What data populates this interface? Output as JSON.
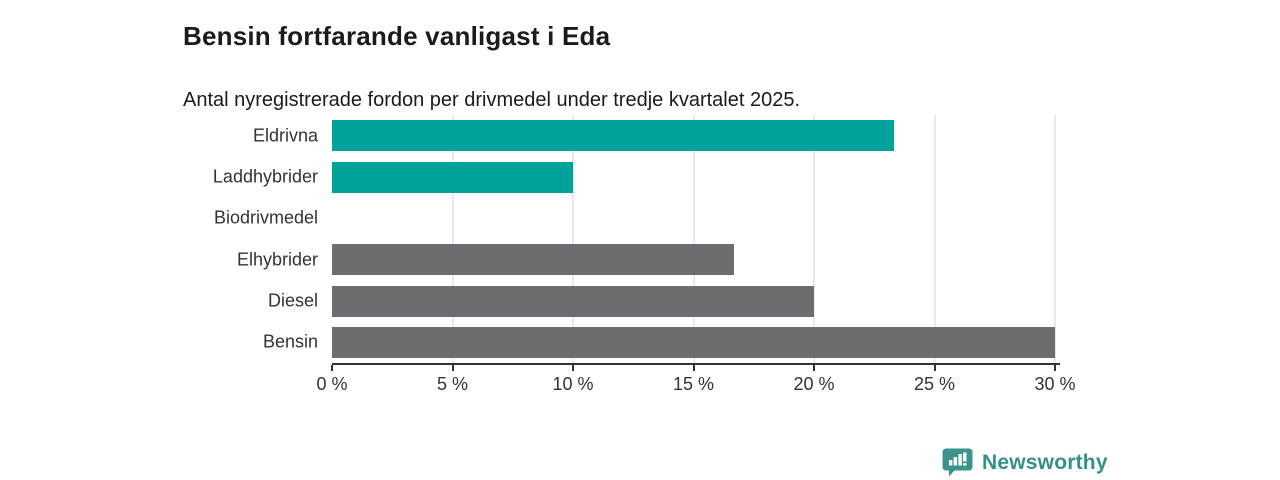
{
  "header": {
    "title": "Bensin fortfarande vanligast i Eda",
    "subtitle": "Antal nyregistrerade fordon per drivmedel under tredje kvartalet 2025."
  },
  "chart_data": {
    "type": "bar",
    "orientation": "horizontal",
    "title": "Bensin fortfarande vanligast i Eda",
    "subtitle": "Antal nyregistrerade fordon per drivmedel under tredje kvartalet 2025.",
    "categories": [
      "Eldrivna",
      "Laddhybrider",
      "Biodrivmedel",
      "Elhybrider",
      "Diesel",
      "Bensin"
    ],
    "values": [
      23.3,
      10,
      0,
      16.7,
      20,
      30
    ],
    "unit": "%",
    "xlabel": "",
    "ylabel": "",
    "xlim": [
      0,
      30
    ],
    "x_ticks": [
      0,
      5,
      10,
      15,
      20,
      25,
      30
    ],
    "x_tick_labels": [
      "0 %",
      "5 %",
      "10 %",
      "15 %",
      "20 %",
      "25 %",
      "30 %"
    ],
    "grid": true,
    "legend": false,
    "bar_colors": [
      "#00a39a",
      "#00a39a",
      "#00a39a",
      "#6c6c71",
      "#6c6c71",
      "#6c6c71"
    ]
  },
  "colors": {
    "teal_bar": "#00a39a",
    "gray_bar": "#6c6c71",
    "gridline": "#e9e9ec",
    "axis": "#333333",
    "logo_teal": "#35908a",
    "logo_icon_teal": "#3a948c"
  },
  "footer": {
    "brand": "Newsworthy"
  }
}
